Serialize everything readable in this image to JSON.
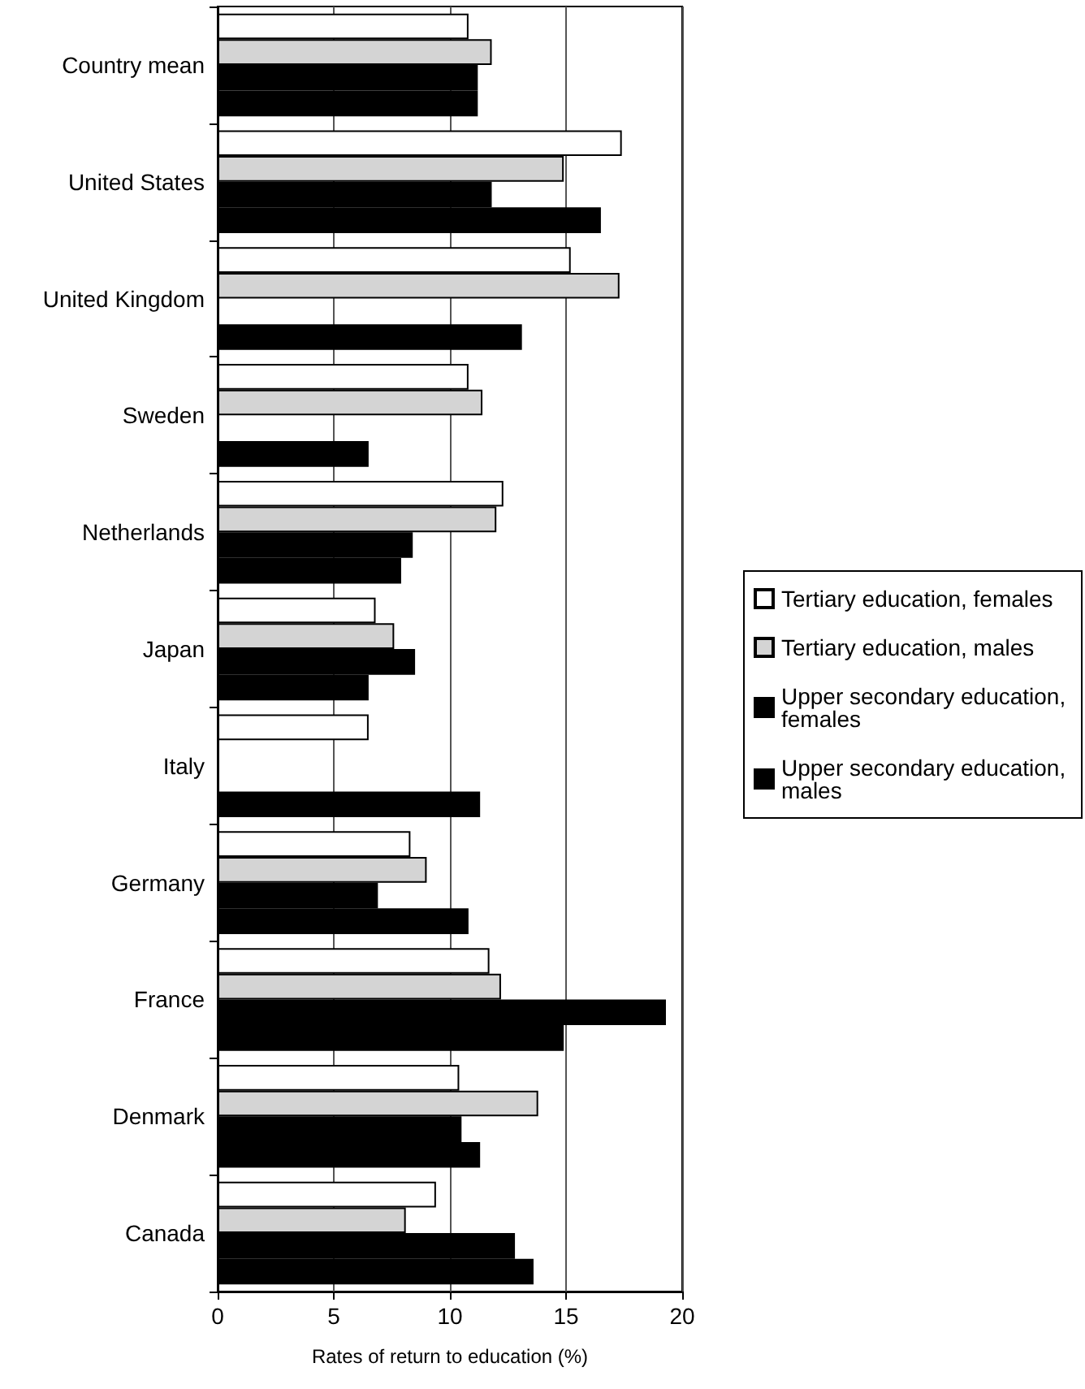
{
  "chart_data": {
    "type": "bar",
    "orientation": "horizontal",
    "xlabel": "Rates of return to education (%)",
    "categories": [
      "Country mean",
      "United States",
      "United Kingdom",
      "Sweden",
      "Netherlands",
      "Japan",
      "Italy",
      "Germany",
      "France",
      "Denmark",
      "Canada"
    ],
    "series": [
      {
        "name": "Tertiary education, females",
        "color": "#ffffff",
        "values": [
          10.8,
          17.4,
          15.2,
          10.8,
          12.3,
          6.8,
          6.5,
          8.3,
          11.7,
          10.4,
          9.4
        ]
      },
      {
        "name": "Tertiary education, males",
        "color": "#d4d4d4",
        "values": [
          11.8,
          14.9,
          17.3,
          11.4,
          12.0,
          7.6,
          null,
          9.0,
          12.2,
          13.8,
          8.1
        ]
      },
      {
        "name": "Upper secondary education, females",
        "color": "#000000",
        "values": [
          11.2,
          11.8,
          null,
          null,
          8.4,
          8.5,
          null,
          6.9,
          19.3,
          10.5,
          12.8
        ]
      },
      {
        "name": "Upper secondary education, males",
        "color": "#000000",
        "values": [
          11.2,
          16.5,
          13.1,
          6.5,
          7.9,
          6.5,
          11.3,
          10.8,
          14.9,
          11.3,
          13.6
        ]
      }
    ],
    "xlim": [
      0,
      20
    ],
    "xticks": [
      0,
      5,
      10,
      15,
      20
    ],
    "grid": "x",
    "legend": "right"
  }
}
